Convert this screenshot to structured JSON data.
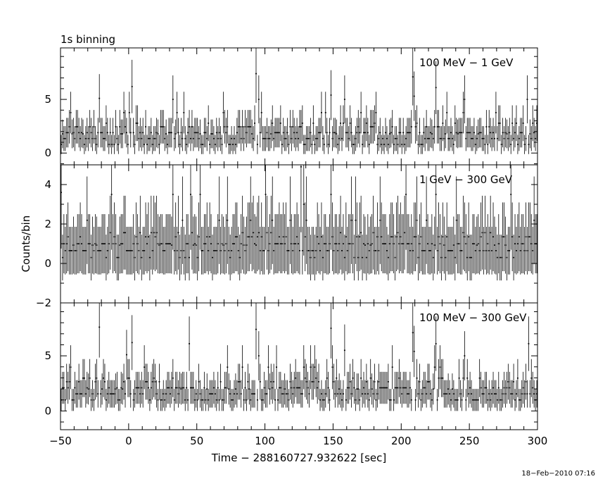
{
  "chart_data": {
    "type": "line",
    "title": "1s binning",
    "xlabel": "Time − 288160727.932622 [sec]",
    "ylabel": "Counts/bin",
    "timestamp": "18−Feb−2010 07:16",
    "xlim": [
      -50,
      300
    ],
    "x_ticks": [
      -50,
      0,
      50,
      100,
      150,
      200,
      250,
      300
    ],
    "x_tick_labels": [
      "−50",
      "0",
      "50",
      "100",
      "150",
      "200",
      "250",
      "300"
    ],
    "grid": false,
    "panels": [
      {
        "label": "100 MeV − 1 GeV",
        "ylim": [
          -1.1,
          9.8
        ],
        "y_ticks": [
          0,
          5
        ],
        "y_tick_labels": [
          "0",
          "5"
        ],
        "baseline": 0.8,
        "peaks": [
          [
            -22,
            5.1
          ],
          [
            2,
            6.2
          ],
          [
            32,
            5.0
          ],
          [
            93,
            7.4
          ],
          [
            94.5,
            5.0
          ],
          [
            148,
            5.4
          ],
          [
            158,
            5.0
          ],
          [
            208,
            7.1
          ],
          [
            209,
            5.3
          ],
          [
            225,
            6.1
          ],
          [
            246,
            5.0
          ],
          [
            292,
            5.0
          ]
        ]
      },
      {
        "label": "1 GeV − 300 GeV",
        "ylim": [
          -2.0,
          5.0
        ],
        "y_ticks": [
          -2,
          0,
          2,
          4
        ],
        "y_tick_labels": [
          "−2",
          "0",
          "2",
          "4"
        ],
        "baseline": 0.3,
        "peaks": [
          [
            -50,
            3.6
          ],
          [
            -13,
            3.5
          ],
          [
            32,
            3.5
          ],
          [
            45,
            3.5
          ],
          [
            52,
            3.5
          ],
          [
            100,
            3.5
          ],
          [
            126,
            4.9
          ],
          [
            128,
            3.0
          ],
          [
            148,
            3.5
          ],
          [
            203,
            3.5
          ],
          [
            225,
            3.5
          ],
          [
            280,
            3.5
          ]
        ]
      },
      {
        "label": "100 MeV − 300 GeV",
        "ylim": [
          -1.7,
          9.8
        ],
        "y_ticks": [
          0,
          5
        ],
        "y_tick_labels": [
          "0",
          "5"
        ],
        "baseline": 1.0,
        "peaks": [
          [
            -22,
            7.6
          ],
          [
            -2,
            5.1
          ],
          [
            2,
            6.2
          ],
          [
            44,
            6.1
          ],
          [
            93,
            7.4
          ],
          [
            94.5,
            5.0
          ],
          [
            148,
            7.5
          ],
          [
            158,
            5.5
          ],
          [
            208,
            7.1
          ],
          [
            209,
            5.4
          ],
          [
            225,
            6.1
          ],
          [
            246,
            5.0
          ],
          [
            293,
            6.1
          ]
        ]
      }
    ]
  }
}
